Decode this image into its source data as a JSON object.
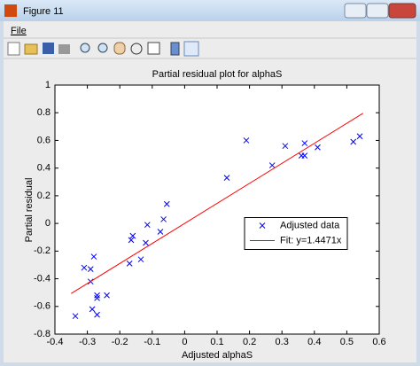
{
  "window": {
    "title": "Figure 11",
    "menu": [
      "File"
    ]
  },
  "chart_data": {
    "type": "scatter",
    "title": "Partial residual plot for alphaS",
    "x_label": "Adjusted alphaS",
    "y_label": "Partial residual",
    "xlim": [
      -0.4,
      0.6
    ],
    "ylim": [
      -0.8,
      1
    ],
    "xticks": [
      -0.4,
      -0.3,
      -0.2,
      -0.1,
      0,
      0.1,
      0.2,
      0.3,
      0.4,
      0.5,
      0.6
    ],
    "yticks": [
      -0.8,
      -0.6,
      -0.4,
      -0.2,
      0,
      0.2,
      0.4,
      0.6,
      0.8,
      1
    ],
    "grid": false,
    "legend_loc": "east",
    "series": [
      {
        "name": "Adjusted data",
        "color": "#0000ff",
        "marker": "x",
        "x": [
          -0.337,
          -0.31,
          -0.29,
          -0.29,
          -0.28,
          -0.285,
          -0.27,
          -0.27,
          -0.27,
          -0.24,
          -0.17,
          -0.165,
          -0.16,
          -0.135,
          -0.12,
          -0.115,
          -0.075,
          -0.065,
          -0.055,
          0.13,
          0.19,
          0.27,
          0.31,
          0.36,
          0.37,
          0.37,
          0.41,
          0.52,
          0.54
        ],
        "values": [
          -0.67,
          -0.32,
          -0.33,
          -0.42,
          -0.24,
          -0.62,
          -0.52,
          -0.54,
          -0.66,
          -0.52,
          -0.29,
          -0.12,
          -0.09,
          -0.26,
          -0.14,
          -0.01,
          -0.06,
          0.03,
          0.14,
          0.33,
          0.6,
          0.42,
          0.56,
          0.49,
          0.58,
          0.49,
          0.55,
          0.59,
          0.63
        ]
      },
      {
        "name": "Fit: y=1.4471x",
        "color": "#ff0000",
        "marker": "line",
        "x": [
          -0.35,
          0.55
        ],
        "values": [
          -0.5065,
          0.7959
        ]
      }
    ]
  }
}
